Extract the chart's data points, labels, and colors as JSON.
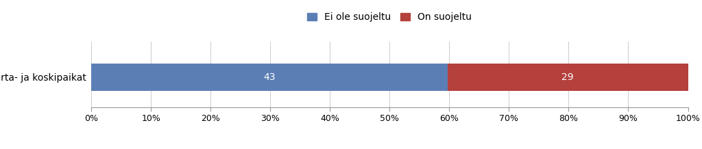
{
  "category": "Virta- ja koskipaikat",
  "value1": 43,
  "value2": 29,
  "color1": "#5B7FB5",
  "color2": "#B5413C",
  "label1": "Ei ole suojeltu",
  "label2": "On suojeltu",
  "xticks": [
    0,
    10,
    20,
    30,
    40,
    50,
    60,
    70,
    80,
    90,
    100
  ],
  "xtick_labels": [
    "0%",
    "10%",
    "20%",
    "30%",
    "40%",
    "50%",
    "60%",
    "70%",
    "80%",
    "90%",
    "100%"
  ],
  "bar_height": 0.5,
  "label_fontsize": 10,
  "tick_fontsize": 9,
  "legend_fontsize": 10,
  "background_color": "#ffffff"
}
